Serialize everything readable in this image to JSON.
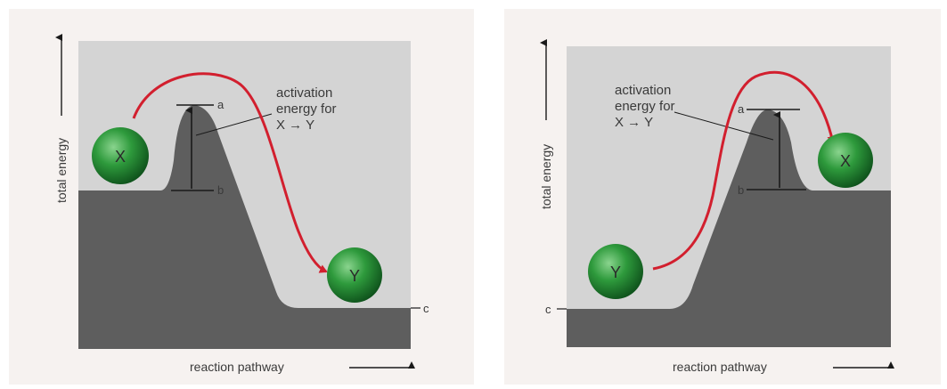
{
  "colors": {
    "plot_background": "#d4d4d4",
    "energy_surface": "#5e5e5e",
    "arrow_path": "#d21f2e",
    "molecule_green": "#2e9a3c",
    "panel_background": "#f6f2f0",
    "text": "#3a3a3a"
  },
  "left_panel": {
    "y_axis_label": "total energy",
    "x_axis_label": "reaction pathway",
    "annotation": [
      "activation",
      "energy for",
      "X → Y"
    ],
    "point_a": "a",
    "point_b": "b",
    "point_c": "c",
    "molecule_start": "X",
    "molecule_end": "Y"
  },
  "right_panel": {
    "y_axis_label": "total energy",
    "x_axis_label": "reaction pathway",
    "annotation": [
      "activation",
      "energy for",
      "X → Y"
    ],
    "point_a": "a",
    "point_b": "b",
    "point_c": "c",
    "molecule_start": "Y",
    "molecule_end": "X"
  }
}
